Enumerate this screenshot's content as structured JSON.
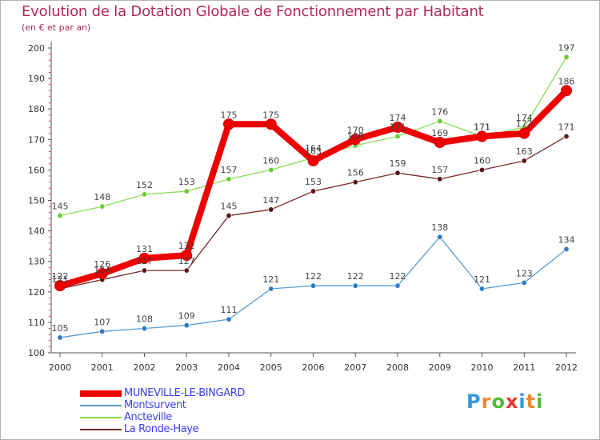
{
  "chart_data": {
    "type": "line",
    "title": "Evolution de la Dotation Globale de Fonctionnement par Habitant",
    "subtitle": "(en € et par an)",
    "xlabel": "",
    "ylabel": "",
    "categories": [
      "2000",
      "2001",
      "2002",
      "2003",
      "2004",
      "2005",
      "2006",
      "2007",
      "2008",
      "2009",
      "2010",
      "2011",
      "2012"
    ],
    "ylim": [
      100,
      200
    ],
    "yticks": [
      100,
      110,
      120,
      130,
      140,
      150,
      160,
      170,
      180,
      190,
      200
    ],
    "grid": false,
    "legend_position": "bottom-left",
    "series": [
      {
        "name": "MUNEVILLE-LE-BINGARD",
        "color": "#ee0000",
        "marker": "#ee0000",
        "values": [
          122,
          126,
          131,
          132,
          175,
          175,
          163,
          170,
          174,
          169,
          171,
          172,
          186
        ],
        "labels": [
          "122",
          "126",
          "131",
          "132",
          "175",
          "175",
          "163",
          "170",
          "174",
          "169",
          "171",
          "172",
          "186"
        ]
      },
      {
        "name": "Montsurvent",
        "color": "#5a9bd0",
        "marker": "#2c7bc0",
        "values": [
          105,
          107,
          108,
          109,
          111,
          121,
          122,
          122,
          122,
          138,
          121,
          123,
          134
        ],
        "labels": [
          "105",
          "107",
          "108",
          "109",
          "111",
          "121",
          "122",
          "122",
          "122",
          "138",
          "121",
          "123",
          "134"
        ]
      },
      {
        "name": "Ancteville",
        "color": "#88dd55",
        "marker": "#66cc33",
        "values": [
          145,
          148,
          152,
          153,
          157,
          160,
          164,
          168,
          171,
          176,
          171,
          174,
          197
        ],
        "labels": [
          "145",
          "148",
          "152",
          "153",
          "157",
          "160",
          "164",
          "168",
          "171",
          "176",
          "171",
          "174",
          "197"
        ]
      },
      {
        "name": "La Ronde-Haye",
        "color": "#7a2a2a",
        "marker": "#5a1515",
        "values": [
          121,
          124,
          127,
          127,
          145,
          147,
          153,
          156,
          159,
          157,
          160,
          163,
          171
        ],
        "labels": [
          "121",
          "124",
          "127",
          "127",
          "145",
          "147",
          "153",
          "156",
          "159",
          "157",
          "160",
          "163",
          "171"
        ]
      }
    ]
  },
  "logo": {
    "letters": [
      "P",
      "r",
      "o",
      "x",
      "i",
      "t",
      "i"
    ],
    "colors": [
      "#3399dd",
      "#ee8833",
      "#55bb33",
      "#ee3333",
      "#3399dd",
      "#ee8833",
      "#55bb33"
    ]
  }
}
